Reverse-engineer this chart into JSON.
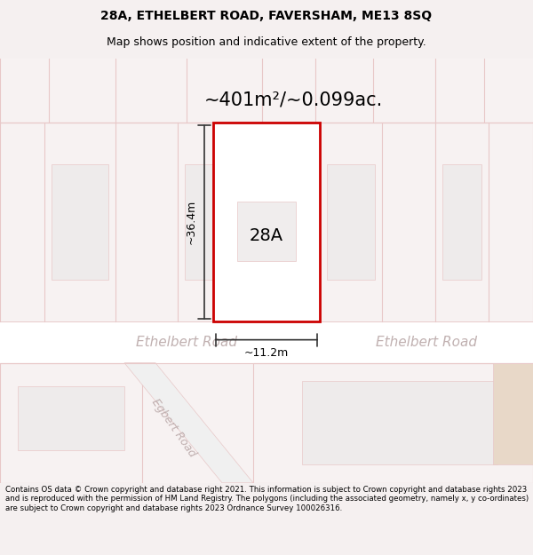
{
  "title_line1": "28A, ETHELBERT ROAD, FAVERSHAM, ME13 8SQ",
  "title_line2": "Map shows position and indicative extent of the property.",
  "area_text": "~401m²/~0.099ac.",
  "label_28A": "28A",
  "dim_height": "~36.4m",
  "dim_width": "~11.2m",
  "road_name_left": "Ethelbert Road",
  "road_name_right": "Ethelbert Road",
  "road_name_diagonal": "Egbert Road",
  "footer_text": "Contains OS data © Crown copyright and database right 2021. This information is subject to Crown copyright and database rights 2023 and is reproduced with the permission of HM Land Registry. The polygons (including the associated geometry, namely x, y co-ordinates) are subject to Crown copyright and database rights 2023 Ordnance Survey 100026316.",
  "bg_color": "#f5f0f0",
  "map_bg": "#ffffff",
  "road_color": "#e8e0e0",
  "plot_outline_color": "#e8c8c8",
  "highlight_color": "#cc0000",
  "dim_line_color": "#333333",
  "road_text_color": "#c0b0b0",
  "footer_bg": "#ffffff"
}
